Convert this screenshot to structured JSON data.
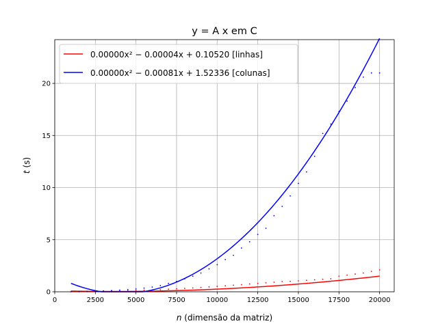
{
  "chart_data": {
    "type": "line",
    "title": "y = A x em C",
    "xlabel_italic": "n",
    "xlabel_rest": " (dimensão da matriz)",
    "ylabel_italic": "t",
    "ylabel_rest": " (s)",
    "xlim": [
      0,
      20900
    ],
    "ylim": [
      0,
      24.2
    ],
    "xticks": [
      0,
      2500,
      5000,
      7500,
      10000,
      12500,
      15000,
      17500,
      20000
    ],
    "yticks": [
      0,
      5,
      10,
      15,
      20
    ],
    "grid": true,
    "legend_position": "top-left",
    "series": [
      {
        "name": "0.00000x² − 0.00004x + 0.10520 [linhas]",
        "color": "#ff0000",
        "fit": {
          "a": 5.5e-09,
          "b": -4e-05,
          "c": 0.1052,
          "x_start": 1000,
          "x_end": 20000
        },
        "points": {
          "x": [
            1000,
            1500,
            2000,
            2500,
            3000,
            3500,
            4000,
            4500,
            5000,
            5500,
            6000,
            6500,
            7000,
            7500,
            8000,
            8500,
            9000,
            9500,
            10000,
            10500,
            11000,
            11500,
            12000,
            12500,
            13000,
            13500,
            14000,
            14500,
            15000,
            15500,
            16000,
            16500,
            17000,
            17500,
            18000,
            18500,
            19000,
            19500,
            20000
          ],
          "y": [
            0.01,
            0.01,
            0.02,
            0.03,
            0.04,
            0.06,
            0.08,
            0.1,
            0.13,
            0.15,
            0.18,
            0.21,
            0.25,
            0.29,
            0.33,
            0.37,
            0.42,
            0.47,
            0.52,
            0.57,
            0.63,
            0.69,
            0.75,
            0.8,
            0.86,
            0.92,
            0.99,
            1.0,
            1.05,
            1.1,
            1.15,
            1.2,
            1.25,
            1.5,
            1.6,
            1.7,
            1.8,
            1.95,
            2.1
          ]
        }
      },
      {
        "name": "0.00000x² − 0.00081x + 1.52336 [colunas]",
        "color": "#0000ff",
        "fit": {
          "a": 9.75e-08,
          "b": -0.00081,
          "c": 1.52336,
          "x_start": 1000,
          "x_end": 20000
        },
        "points": {
          "x": [
            1000,
            1500,
            2000,
            2500,
            3000,
            3500,
            4000,
            4500,
            5000,
            5500,
            6000,
            6500,
            7000,
            7500,
            8000,
            8500,
            9000,
            9500,
            10000,
            10500,
            11000,
            11500,
            12000,
            12500,
            13000,
            13500,
            14000,
            14500,
            15000,
            15500,
            16000,
            16500,
            17000,
            17500,
            18000,
            18500,
            19000,
            19500,
            20000
          ],
          "y": [
            0.01,
            0.02,
            0.04,
            0.06,
            0.09,
            0.12,
            0.16,
            0.21,
            0.27,
            0.35,
            0.45,
            0.6,
            0.8,
            1.0,
            1.25,
            1.5,
            1.8,
            2.2,
            2.6,
            3.1,
            3.5,
            4.2,
            4.8,
            5.5,
            6.1,
            7.3,
            8.2,
            9.2,
            10.4,
            11.5,
            13.0,
            15.2,
            16.1,
            17.3,
            18.3,
            19.6,
            20.6,
            21.0,
            21.0
          ]
        }
      }
    ]
  }
}
